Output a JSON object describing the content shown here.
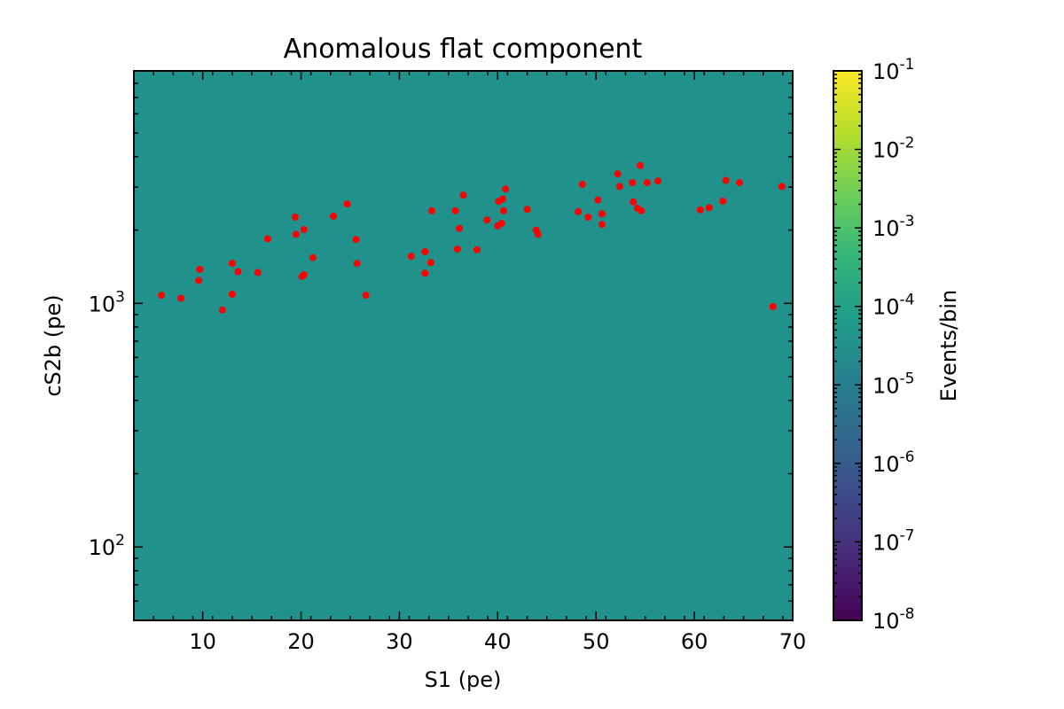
{
  "chart_data": {
    "type": "scatter",
    "title": "Anomalous flat component",
    "xlabel": "S1 (pe)",
    "ylabel": "cS2b (pe)",
    "xlim": [
      3,
      70
    ],
    "ylim": [
      50,
      9000
    ],
    "yscale": "log",
    "x_ticks": [
      "10",
      "20",
      "30",
      "40",
      "50",
      "60",
      "70"
    ],
    "y_ticks": [
      {
        "base": "10",
        "exp": "2",
        "value": 100
      },
      {
        "base": "10",
        "exp": "3",
        "value": 1000
      }
    ],
    "background_color": "#21918c",
    "marker_color": "#ff0000",
    "grid": false,
    "colorbar": {
      "label": "Events/bin",
      "scale": "log",
      "range": [
        1e-08,
        0.1
      ],
      "colormap": "viridis",
      "ticks": [
        {
          "base": "10",
          "exp": "-1",
          "value": 0.1
        },
        {
          "base": "10",
          "exp": "-2",
          "value": 0.01
        },
        {
          "base": "10",
          "exp": "-3",
          "value": 0.001
        },
        {
          "base": "10",
          "exp": "-4",
          "value": 0.0001
        },
        {
          "base": "10",
          "exp": "-5",
          "value": 1e-05
        },
        {
          "base": "10",
          "exp": "-6",
          "value": 1e-06
        },
        {
          "base": "10",
          "exp": "-7",
          "value": 1e-07
        },
        {
          "base": "10",
          "exp": "-8",
          "value": 1e-08
        }
      ]
    },
    "points": [
      {
        "x": 5.8,
        "y": 1080
      },
      {
        "x": 7.8,
        "y": 1050
      },
      {
        "x": 9.6,
        "y": 1240
      },
      {
        "x": 9.7,
        "y": 1380
      },
      {
        "x": 12.0,
        "y": 940
      },
      {
        "x": 13.0,
        "y": 1090
      },
      {
        "x": 13.0,
        "y": 1460
      },
      {
        "x": 13.6,
        "y": 1350
      },
      {
        "x": 15.6,
        "y": 1340
      },
      {
        "x": 16.6,
        "y": 1840
      },
      {
        "x": 19.4,
        "y": 2260
      },
      {
        "x": 19.5,
        "y": 1920
      },
      {
        "x": 20.1,
        "y": 1290
      },
      {
        "x": 20.3,
        "y": 1310
      },
      {
        "x": 20.3,
        "y": 2010
      },
      {
        "x": 21.2,
        "y": 1540
      },
      {
        "x": 23.3,
        "y": 2280
      },
      {
        "x": 24.7,
        "y": 2560
      },
      {
        "x": 25.6,
        "y": 1830
      },
      {
        "x": 25.7,
        "y": 1460
      },
      {
        "x": 26.6,
        "y": 1080
      },
      {
        "x": 31.2,
        "y": 1560
      },
      {
        "x": 32.6,
        "y": 1630
      },
      {
        "x": 32.6,
        "y": 1330
      },
      {
        "x": 33.2,
        "y": 1470
      },
      {
        "x": 33.3,
        "y": 2400
      },
      {
        "x": 35.7,
        "y": 2400
      },
      {
        "x": 35.9,
        "y": 1670
      },
      {
        "x": 36.1,
        "y": 2030
      },
      {
        "x": 36.5,
        "y": 2780
      },
      {
        "x": 37.9,
        "y": 1660
      },
      {
        "x": 38.9,
        "y": 2200
      },
      {
        "x": 40.0,
        "y": 2080
      },
      {
        "x": 40.1,
        "y": 2620
      },
      {
        "x": 40.4,
        "y": 2130
      },
      {
        "x": 40.5,
        "y": 2680
      },
      {
        "x": 40.6,
        "y": 2400
      },
      {
        "x": 40.8,
        "y": 2950
      },
      {
        "x": 43.0,
        "y": 2430
      },
      {
        "x": 43.9,
        "y": 2000
      },
      {
        "x": 44.1,
        "y": 1920
      },
      {
        "x": 48.2,
        "y": 2380
      },
      {
        "x": 48.6,
        "y": 3080
      },
      {
        "x": 49.2,
        "y": 2260
      },
      {
        "x": 50.2,
        "y": 2660
      },
      {
        "x": 50.6,
        "y": 2330
      },
      {
        "x": 50.6,
        "y": 2110
      },
      {
        "x": 52.2,
        "y": 3400
      },
      {
        "x": 52.4,
        "y": 3020
      },
      {
        "x": 53.7,
        "y": 3130
      },
      {
        "x": 53.8,
        "y": 2610
      },
      {
        "x": 54.2,
        "y": 2460
      },
      {
        "x": 54.5,
        "y": 3680
      },
      {
        "x": 54.6,
        "y": 2400
      },
      {
        "x": 55.2,
        "y": 3130
      },
      {
        "x": 56.3,
        "y": 3180
      },
      {
        "x": 60.6,
        "y": 2420
      },
      {
        "x": 61.5,
        "y": 2470
      },
      {
        "x": 62.9,
        "y": 2630
      },
      {
        "x": 63.2,
        "y": 3200
      },
      {
        "x": 64.6,
        "y": 3130
      },
      {
        "x": 68.0,
        "y": 970
      },
      {
        "x": 68.9,
        "y": 3020
      }
    ]
  }
}
